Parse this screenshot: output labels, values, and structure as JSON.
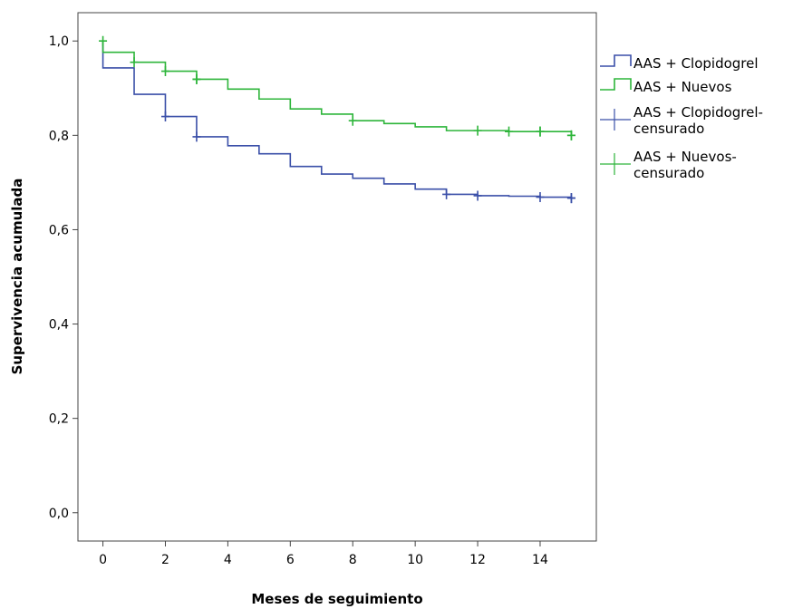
{
  "chart_data": {
    "type": "line",
    "subtype": "kaplan-meier-step",
    "xlabel": "Meses de seguimiento",
    "ylabel": "Supervivencia acumulada",
    "xlim": [
      -0.8,
      15.8
    ],
    "ylim": [
      -0.06,
      1.06
    ],
    "x_ticks": [
      0,
      2,
      4,
      6,
      8,
      10,
      12,
      14
    ],
    "x_tick_labels": [
      "0",
      "2",
      "4",
      "6",
      "8",
      "10",
      "12",
      "14"
    ],
    "y_ticks": [
      0.0,
      0.2,
      0.4,
      0.6,
      0.8,
      1.0
    ],
    "y_tick_labels": [
      "0,0",
      "0,2",
      "0,4",
      "0,6",
      "0,8",
      "1,0"
    ],
    "grid": false,
    "legend_position": "right",
    "legend": [
      {
        "label": "AAS + Clopidogrel",
        "marker": "step",
        "color": "#3a4fa8"
      },
      {
        "label": "AAS + Nuevos",
        "marker": "step",
        "color": "#2db53a"
      },
      {
        "label": "AAS + Clopidogrel-\ncensurado",
        "marker": "plus",
        "color": "#3a4fa8"
      },
      {
        "label": "AAS + Nuevos-\ncensurado",
        "marker": "plus",
        "color": "#2db53a"
      }
    ],
    "series": [
      {
        "name": "AAS + Clopidogrel",
        "color": "#3a4fa8",
        "steps": [
          [
            0,
            1.0
          ],
          [
            0,
            0.943
          ],
          [
            1,
            0.887
          ],
          [
            2,
            0.84
          ],
          [
            3,
            0.797
          ],
          [
            4,
            0.778
          ],
          [
            5,
            0.761
          ],
          [
            6,
            0.734
          ],
          [
            7,
            0.718
          ],
          [
            8,
            0.709
          ],
          [
            9,
            0.697
          ],
          [
            10,
            0.686
          ],
          [
            11,
            0.675
          ],
          [
            12,
            0.672
          ],
          [
            13,
            0.671
          ],
          [
            14,
            0.669
          ],
          [
            15,
            0.667
          ]
        ],
        "censored": [
          [
            2,
            0.84
          ],
          [
            3,
            0.797
          ],
          [
            11,
            0.675
          ],
          [
            12,
            0.672
          ],
          [
            14,
            0.669
          ],
          [
            15,
            0.667
          ],
          [
            15,
            0.667
          ]
        ]
      },
      {
        "name": "AAS + Nuevos",
        "color": "#2db53a",
        "steps": [
          [
            0,
            1.0
          ],
          [
            0,
            0.976
          ],
          [
            1,
            0.955
          ],
          [
            2,
            0.936
          ],
          [
            3,
            0.919
          ],
          [
            4,
            0.898
          ],
          [
            5,
            0.877
          ],
          [
            6,
            0.856
          ],
          [
            7,
            0.845
          ],
          [
            8,
            0.831
          ],
          [
            9,
            0.825
          ],
          [
            10,
            0.818
          ],
          [
            11,
            0.81
          ],
          [
            12,
            0.81
          ],
          [
            13,
            0.808
          ],
          [
            14,
            0.808
          ],
          [
            15,
            0.8
          ]
        ],
        "censored": [
          [
            0,
            1.0
          ],
          [
            1,
            0.955
          ],
          [
            2,
            0.936
          ],
          [
            3,
            0.919
          ],
          [
            3,
            0.919
          ],
          [
            8,
            0.831
          ],
          [
            12,
            0.81
          ],
          [
            13,
            0.808
          ],
          [
            14,
            0.808
          ],
          [
            14,
            0.808
          ],
          [
            15,
            0.8
          ],
          [
            15,
            0.8
          ]
        ]
      }
    ]
  }
}
